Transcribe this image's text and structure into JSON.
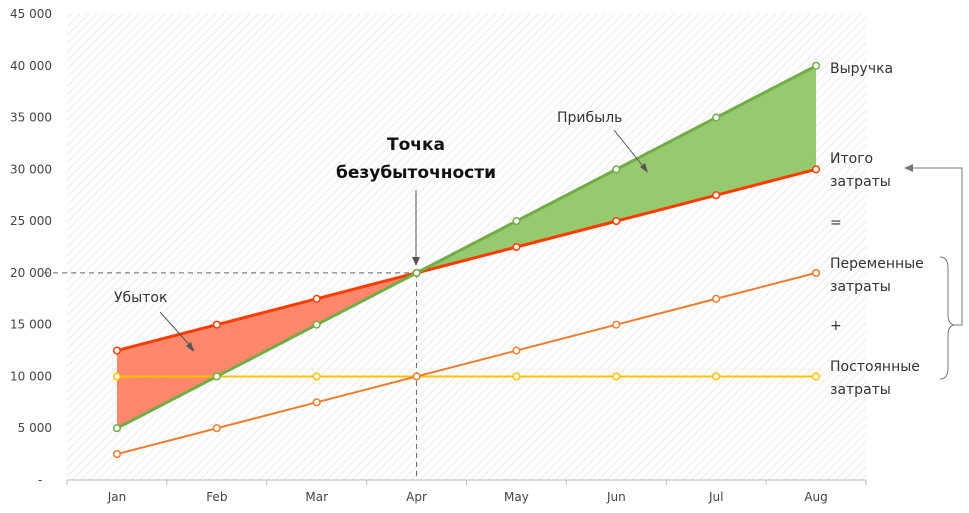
{
  "chart_data": {
    "type": "line",
    "title": "",
    "xlabel": "",
    "ylabel": "",
    "categories": [
      "Jan",
      "Feb",
      "Mar",
      "Apr",
      "May",
      "Jun",
      "Jul",
      "Aug"
    ],
    "ylim": [
      0,
      45000
    ],
    "yticks": [
      "-",
      "5 000",
      "10 000",
      "15 000",
      "20 000",
      "25 000",
      "30 000",
      "35 000",
      "40 000",
      "45 000"
    ],
    "grid": false,
    "series": [
      {
        "name": "Выручка",
        "values": [
          5000,
          10000,
          15000,
          20000,
          25000,
          30000,
          35000,
          40000
        ],
        "color": "#70ad47"
      },
      {
        "name": "Итого затраты",
        "values": [
          12500,
          15000,
          17500,
          20000,
          22500,
          25000,
          27500,
          30000
        ],
        "color": "#ff3d00"
      },
      {
        "name": "Переменные затраты",
        "values": [
          2500,
          5000,
          7500,
          10000,
          12500,
          15000,
          17500,
          20000
        ],
        "color": "#ed7d31"
      },
      {
        "name": "Постоянные затраты",
        "values": [
          10000,
          10000,
          10000,
          10000,
          10000,
          10000,
          10000,
          10000
        ],
        "color": "#ffc000"
      }
    ],
    "areas": [
      {
        "name": "Убыток",
        "color": "#ff7b5c"
      },
      {
        "name": "Прибыль",
        "color": "#8cc45e"
      }
    ],
    "break_even": {
      "label_line1": "Точка",
      "label_line2": "безубыточности",
      "x": "Apr",
      "y": 20000
    }
  },
  "labels": {
    "revenue": "Выручка",
    "total_line1": "Итого",
    "total_line2": "затраты",
    "equals": "=",
    "variable_line1": "Переменные",
    "variable_line2": "затраты",
    "plus": "+",
    "fixed_line1": "Постоянные",
    "fixed_line2": "затраты",
    "loss": "Убыток",
    "profit": "Прибыль"
  }
}
